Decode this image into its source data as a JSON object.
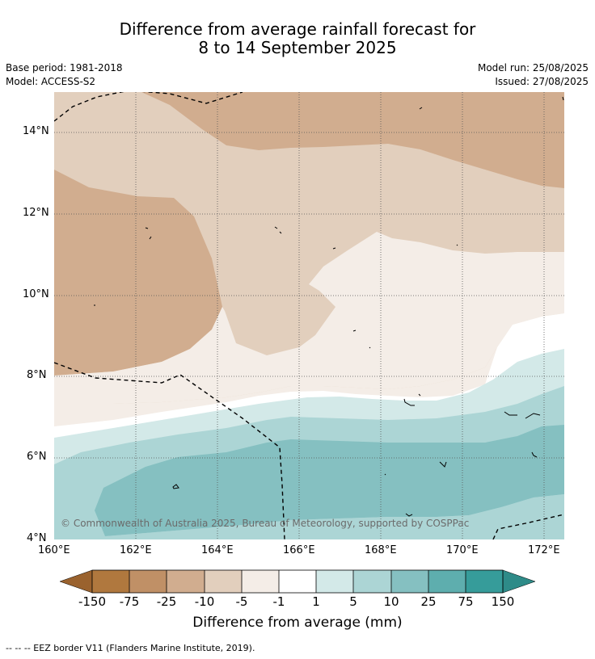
{
  "title": {
    "line1": "Difference from average rainfall forecast for",
    "line2": "8 to 14 September 2025"
  },
  "meta": {
    "base_period": "Base period: 1981-2018",
    "model": "Model: ACCESS-S2",
    "model_run": "Model run: 25/08/2025",
    "issued": "Issued: 27/08/2025"
  },
  "map": {
    "lat_labels": [
      "14°N",
      "12°N",
      "10°N",
      "8°N",
      "6°N",
      "4°N"
    ],
    "lon_labels": [
      "160°E",
      "162°E",
      "164°E",
      "166°E",
      "168°E",
      "170°E",
      "172°E"
    ],
    "copyright": "© Commonwealth of Australia 2025, Bureau of Meteorology, supported by COSPPac",
    "colors": {
      "below_150": "#9a622e",
      "r_-150_-75": "#b0783e",
      "r_-75_-25": "#c09066",
      "r_-25_-10": "#d1ad8f",
      "r_-10_-5": "#e2cfbd",
      "r_-5_-1": "#f4ede7",
      "r_-1_1": "#ffffff",
      "r_1_5": "#d3e9e8",
      "r_5_10": "#acd5d5",
      "r_10_25": "#85c0c1",
      "r_25_75": "#5eaeae",
      "r_75_150": "#369c9a",
      "above_150": "#2e8b88"
    }
  },
  "colorbar": {
    "ticks": [
      "-150",
      "-75",
      "-25",
      "-10",
      "-5",
      "-1",
      "1",
      "5",
      "10",
      "25",
      "75",
      "150"
    ],
    "label": "Difference from average (mm)"
  },
  "footnote": "--  --  -- EEZ border V11 (Flanders Marine Institute, 2019)."
}
